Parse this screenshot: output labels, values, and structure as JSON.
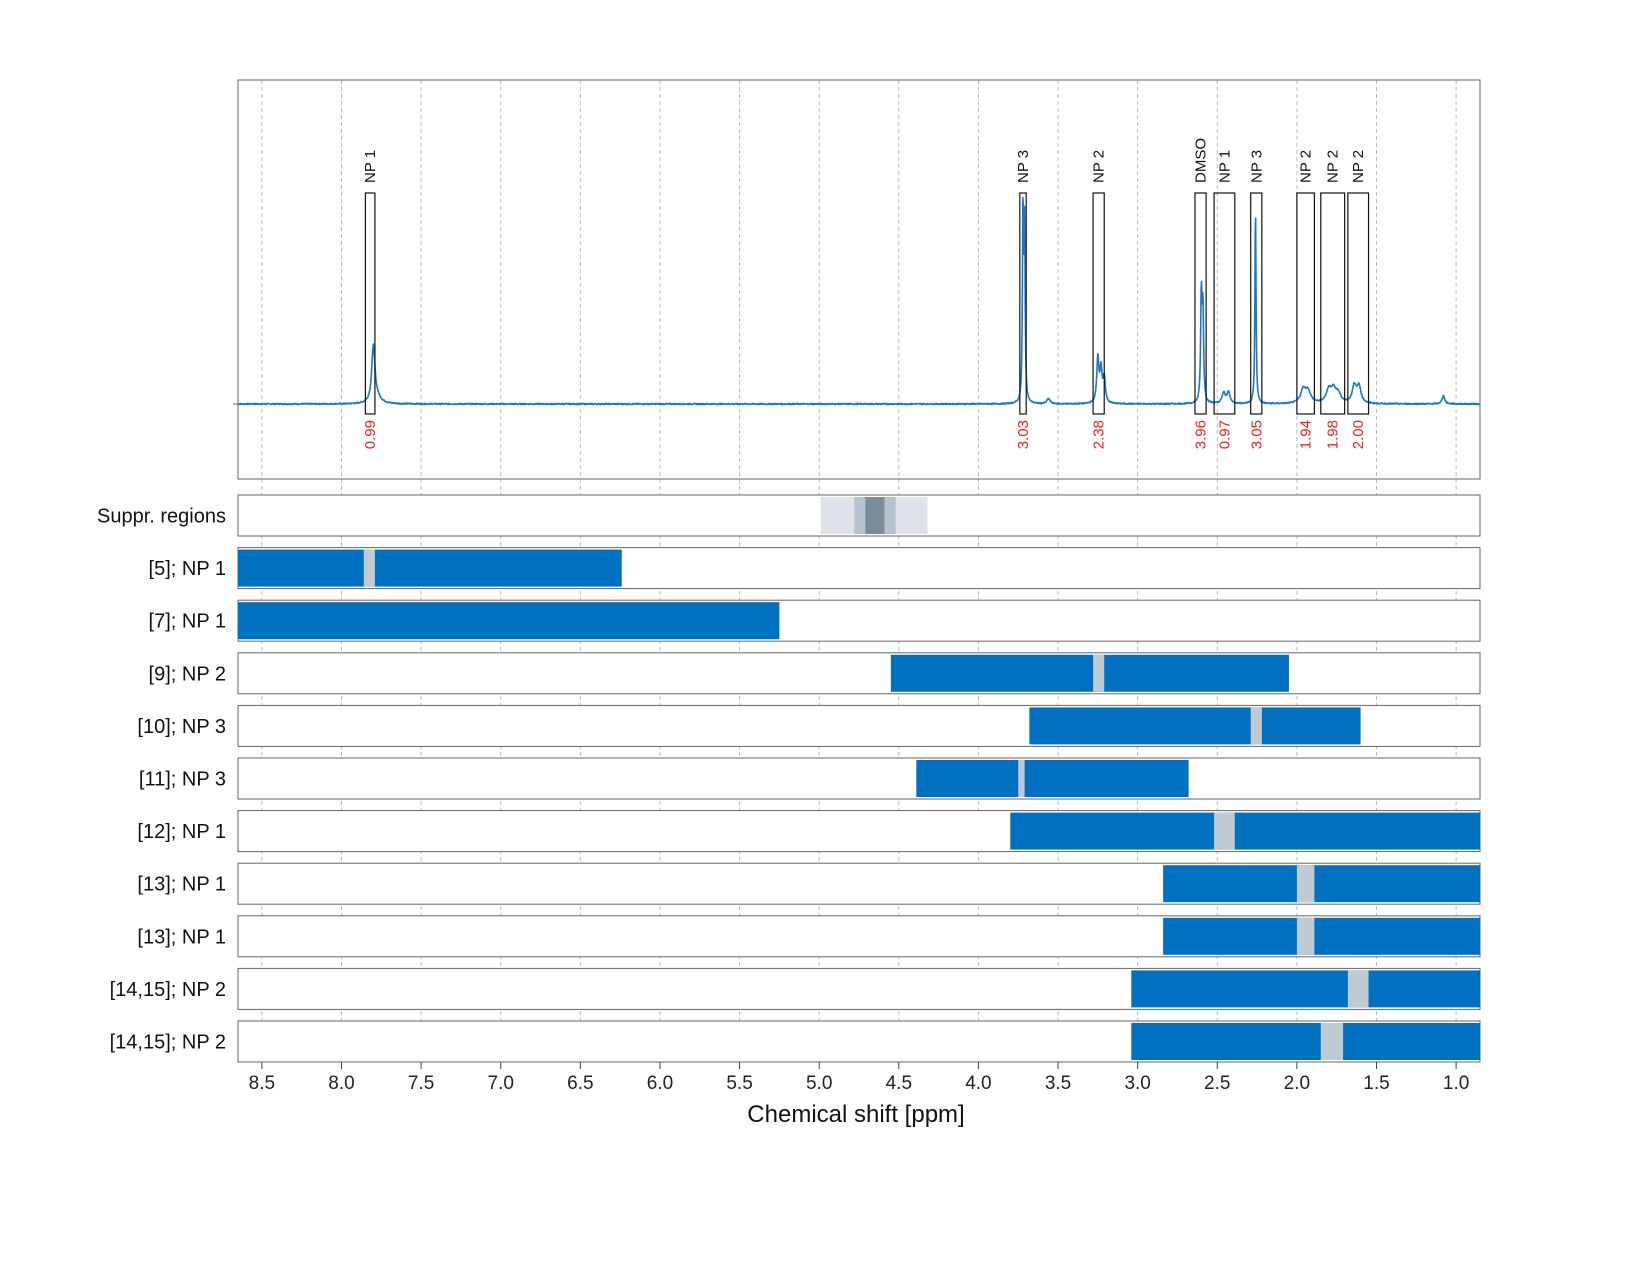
{
  "chart_data": {
    "type": "nmr-spectrum-with-bars",
    "xlabel": "Chemical shift [ppm]",
    "xlim": [
      8.65,
      0.85
    ],
    "x_ticks": [
      "8.5",
      "8.0",
      "7.5",
      "7.0",
      "6.5",
      "6.0",
      "5.5",
      "5.0",
      "4.5",
      "4.0",
      "3.5",
      "3.0",
      "2.5",
      "2.0",
      "1.5",
      "1.0"
    ],
    "x_tick_values": [
      8.5,
      8.0,
      7.5,
      7.0,
      6.5,
      6.0,
      5.5,
      5.0,
      4.5,
      4.0,
      3.5,
      3.0,
      2.5,
      2.0,
      1.5,
      1.0
    ],
    "grid": "vertical-dashed",
    "spectrum_color": "#1f77c4",
    "peaks": [
      {
        "ppm": 7.8,
        "height": 0.27,
        "width": 0.012
      },
      {
        "ppm": 7.78,
        "height": 0.03,
        "width": 0.03
      },
      {
        "ppm": 3.72,
        "height": 0.95,
        "width": 0.004
      },
      {
        "ppm": 3.71,
        "height": 0.85,
        "width": 0.004
      },
      {
        "ppm": 3.56,
        "height": 0.025,
        "width": 0.012
      },
      {
        "ppm": 3.25,
        "height": 0.22,
        "width": 0.008
      },
      {
        "ppm": 3.23,
        "height": 0.16,
        "width": 0.008
      },
      {
        "ppm": 3.21,
        "height": 0.12,
        "width": 0.008
      },
      {
        "ppm": 2.6,
        "height": 0.52,
        "width": 0.005
      },
      {
        "ppm": 2.59,
        "height": 0.44,
        "width": 0.005
      },
      {
        "ppm": 2.46,
        "height": 0.05,
        "width": 0.012
      },
      {
        "ppm": 2.43,
        "height": 0.055,
        "width": 0.012
      },
      {
        "ppm": 2.26,
        "height": 0.96,
        "width": 0.004
      },
      {
        "ppm": 1.96,
        "height": 0.065,
        "width": 0.02
      },
      {
        "ppm": 1.93,
        "height": 0.055,
        "width": 0.02
      },
      {
        "ppm": 1.8,
        "height": 0.06,
        "width": 0.02
      },
      {
        "ppm": 1.77,
        "height": 0.06,
        "width": 0.02
      },
      {
        "ppm": 1.74,
        "height": 0.04,
        "width": 0.02
      },
      {
        "ppm": 1.64,
        "height": 0.085,
        "width": 0.015
      },
      {
        "ppm": 1.61,
        "height": 0.08,
        "width": 0.015
      },
      {
        "ppm": 1.08,
        "height": 0.04,
        "width": 0.01
      }
    ],
    "peak_boxes": [
      {
        "label": "NP 1",
        "from": 7.85,
        "to": 7.79,
        "integral": "0.99"
      },
      {
        "label": "NP 3",
        "from": 3.74,
        "to": 3.7,
        "integral": "3.03"
      },
      {
        "label": "NP 2",
        "from": 3.28,
        "to": 3.21,
        "integral": "2.38"
      },
      {
        "label": "DMSO",
        "from": 2.64,
        "to": 2.57,
        "integral": "3.96"
      },
      {
        "label": "NP 1",
        "from": 2.52,
        "to": 2.39,
        "integral": "0.97"
      },
      {
        "label": "NP 3",
        "from": 2.29,
        "to": 2.22,
        "integral": "3.05"
      },
      {
        "label": "NP 2",
        "from": 2.0,
        "to": 1.89,
        "integral": "1.94"
      },
      {
        "label": "NP 2",
        "from": 1.85,
        "to": 1.7,
        "integral": "1.98"
      },
      {
        "label": "NP 2",
        "from": 1.68,
        "to": 1.55,
        "integral": "2.00"
      }
    ],
    "suppression_regions": {
      "label": "Suppr. regions",
      "bands": [
        {
          "from": 4.99,
          "to": 4.32,
          "color": "#dde3e9"
        },
        {
          "from": 4.78,
          "to": 4.52,
          "color": "#b6c3cf"
        },
        {
          "from": 4.71,
          "to": 4.59,
          "color": "#7a8b99"
        }
      ]
    },
    "bar_color": "#0070c0",
    "gap_color": "#bfcad3",
    "rows": [
      {
        "label": "[5]; NP 1",
        "bar": [
          8.65,
          6.24
        ],
        "gap": [
          7.86,
          7.79
        ]
      },
      {
        "label": "[7]; NP 1",
        "bar": [
          8.65,
          5.25
        ],
        "gap": null
      },
      {
        "label": "[9]; NP 2",
        "bar": [
          4.55,
          2.05
        ],
        "gap": [
          3.28,
          3.21
        ]
      },
      {
        "label": "[10]; NP 3",
        "bar": [
          3.68,
          1.6
        ],
        "gap": [
          2.29,
          2.22
        ]
      },
      {
        "label": "[11]; NP 3",
        "bar": [
          4.39,
          2.68
        ],
        "gap": [
          3.75,
          3.71
        ]
      },
      {
        "label": "[12]; NP 1",
        "bar": [
          3.8,
          0.85
        ],
        "gap": [
          2.52,
          2.39
        ]
      },
      {
        "label": "[13]; NP 1",
        "bar": [
          2.84,
          0.85
        ],
        "gap": [
          2.0,
          1.89
        ]
      },
      {
        "label": "[13]; NP 1",
        "bar": [
          2.84,
          0.85
        ],
        "gap": [
          2.0,
          1.89
        ]
      },
      {
        "label": "[14,15]; NP 2",
        "bar": [
          3.04,
          0.85
        ],
        "gap": [
          1.68,
          1.55
        ]
      },
      {
        "label": "[14,15]; NP 2",
        "bar": [
          3.04,
          0.85
        ],
        "gap": [
          1.85,
          1.71
        ]
      }
    ]
  }
}
